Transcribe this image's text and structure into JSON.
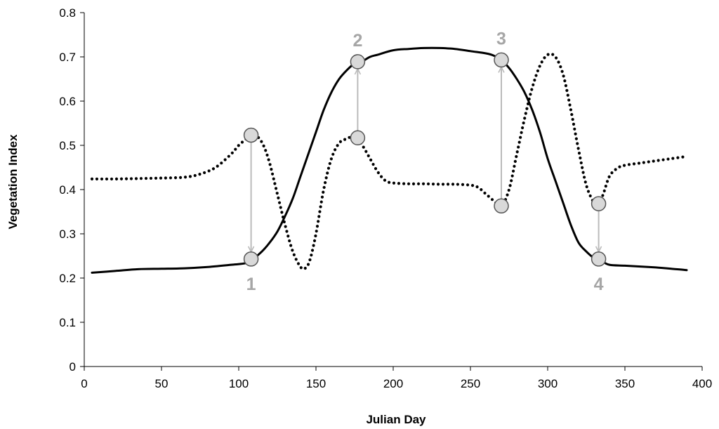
{
  "chart_data": {
    "type": "line",
    "title": "",
    "xlabel": "Julian Day",
    "ylabel": "Vegetation Index",
    "xlim": [
      0,
      400
    ],
    "ylim": [
      0,
      0.8
    ],
    "xticks": [
      0,
      50,
      100,
      150,
      200,
      250,
      300,
      350,
      400
    ],
    "xtick_labels": [
      "0",
      "50",
      "100",
      "150",
      "200",
      "250",
      "300",
      "350",
      "400"
    ],
    "yticks": [
      0,
      0.1,
      0.2,
      0.3,
      0.4,
      0.5,
      0.6,
      0.7,
      0.8
    ],
    "ytick_labels": [
      "0",
      "0.1",
      "0.2",
      "0.3",
      "0.4",
      "0.5",
      "0.6",
      "0.7",
      "0.8"
    ],
    "grid": false,
    "legend": "none",
    "series": [
      {
        "style": "solid",
        "color": "#000000",
        "x": [
          5,
          20,
          35,
          50,
          65,
          80,
          95,
          105,
          110,
          115,
          120,
          125,
          130,
          135,
          140,
          145,
          150,
          155,
          160,
          165,
          170,
          175,
          180,
          185,
          190,
          200,
          210,
          220,
          230,
          240,
          250,
          260,
          265,
          270,
          275,
          280,
          285,
          290,
          295,
          300,
          305,
          310,
          315,
          320,
          325,
          330,
          335,
          340,
          350,
          360,
          370,
          380,
          390
        ],
        "y": [
          0.212,
          0.216,
          0.22,
          0.221,
          0.222,
          0.225,
          0.23,
          0.234,
          0.245,
          0.26,
          0.28,
          0.305,
          0.34,
          0.38,
          0.43,
          0.48,
          0.53,
          0.58,
          0.62,
          0.65,
          0.67,
          0.685,
          0.69,
          0.7,
          0.705,
          0.715,
          0.718,
          0.72,
          0.72,
          0.718,
          0.713,
          0.708,
          0.703,
          0.693,
          0.675,
          0.65,
          0.62,
          0.58,
          0.53,
          0.47,
          0.42,
          0.37,
          0.32,
          0.28,
          0.26,
          0.245,
          0.238,
          0.23,
          0.228,
          0.226,
          0.224,
          0.221,
          0.218
        ]
      },
      {
        "style": "dotted",
        "color": "#000000",
        "x": [
          5,
          20,
          35,
          50,
          65,
          75,
          85,
          95,
          100,
          105,
          108,
          112,
          116,
          120,
          125,
          130,
          135,
          140,
          143,
          146,
          150,
          155,
          160,
          165,
          170,
          175,
          180,
          185,
          190,
          195,
          200,
          210,
          220,
          230,
          240,
          250,
          255,
          260,
          265,
          270,
          275,
          280,
          285,
          290,
          295,
          300,
          305,
          310,
          315,
          320,
          325,
          330,
          333,
          336,
          340,
          345,
          350,
          360,
          370,
          380,
          390
        ],
        "y": [
          0.424,
          0.424,
          0.425,
          0.426,
          0.428,
          0.435,
          0.45,
          0.48,
          0.5,
          0.515,
          0.523,
          0.52,
          0.5,
          0.46,
          0.39,
          0.32,
          0.26,
          0.225,
          0.222,
          0.24,
          0.3,
          0.4,
          0.47,
          0.505,
          0.515,
          0.52,
          0.5,
          0.47,
          0.44,
          0.42,
          0.415,
          0.413,
          0.413,
          0.412,
          0.412,
          0.41,
          0.405,
          0.39,
          0.375,
          0.363,
          0.4,
          0.48,
          0.56,
          0.63,
          0.68,
          0.705,
          0.7,
          0.66,
          0.58,
          0.49,
          0.41,
          0.37,
          0.365,
          0.39,
          0.43,
          0.448,
          0.455,
          0.46,
          0.465,
          0.47,
          0.475
        ]
      }
    ],
    "markers": [
      {
        "label": "1",
        "x": 108,
        "y_from": 0.523,
        "y_to": 0.243,
        "label_pos": "below"
      },
      {
        "label": "2",
        "x": 177,
        "y_from": 0.517,
        "y_to": 0.689,
        "label_pos": "above"
      },
      {
        "label": "3",
        "x": 270,
        "y_from": 0.363,
        "y_to": 0.693,
        "label_pos": "above"
      },
      {
        "label": "4",
        "x": 333,
        "y_from": 0.368,
        "y_to": 0.243,
        "label_pos": "below"
      }
    ],
    "marker_color": "#bbbbbb",
    "marker_fill": "#d9d9d9",
    "marker_text_color": "#a6a6a6"
  }
}
